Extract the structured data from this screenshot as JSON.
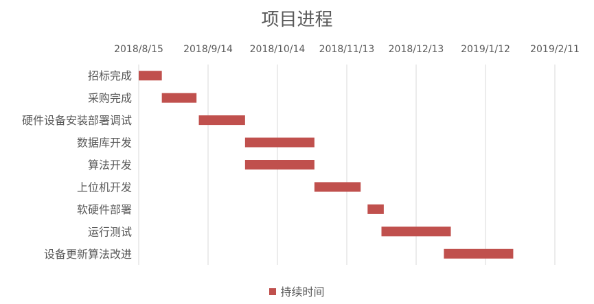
{
  "chart_data": {
    "type": "gantt",
    "title": "项目进程",
    "x_axis": {
      "type": "date",
      "ticks": [
        "2018/8/15",
        "2018/9/14",
        "2018/10/14",
        "2018/11/13",
        "2018/12/13",
        "2019/1/12",
        "2019/2/11"
      ],
      "range": [
        "2018/8/15",
        "2019/2/11"
      ],
      "position": "top"
    },
    "grid": true,
    "series": [
      {
        "name": "持续时间",
        "color": "#c0504d"
      }
    ],
    "tasks": [
      {
        "name": "招标完成",
        "start": "2018/8/15",
        "end": "2018/8/25"
      },
      {
        "name": "采购完成",
        "start": "2018/8/25",
        "end": "2018/9/9"
      },
      {
        "name": "硬件设备安装部署调试",
        "start": "2018/9/10",
        "end": "2018/9/30"
      },
      {
        "name": "数据库开发",
        "start": "2018/9/30",
        "end": "2018/10/30"
      },
      {
        "name": "算法开发",
        "start": "2018/9/30",
        "end": "2018/10/30"
      },
      {
        "name": "上位机开发",
        "start": "2018/10/30",
        "end": "2018/11/19"
      },
      {
        "name": "软硬件部署",
        "start": "2018/11/22",
        "end": "2018/11/29"
      },
      {
        "name": "运行测试",
        "start": "2018/11/28",
        "end": "2018/12/28"
      },
      {
        "name": "设备更新算法改进",
        "start": "2018/12/25",
        "end": "2019/1/24"
      }
    ],
    "legend": {
      "position": "bottom"
    }
  }
}
